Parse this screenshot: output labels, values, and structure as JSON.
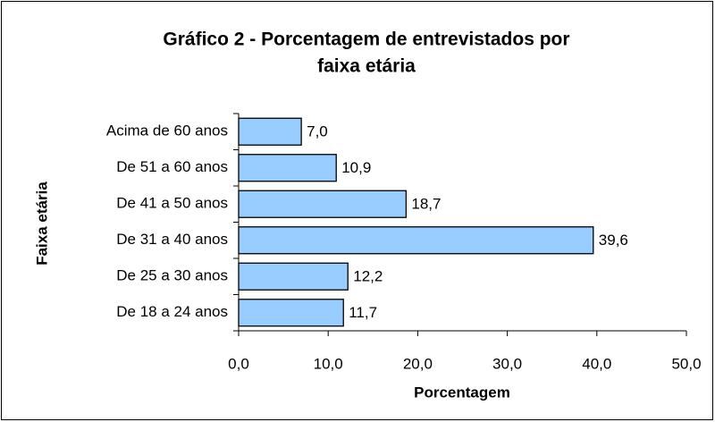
{
  "chart_data": {
    "type": "bar",
    "orientation": "horizontal",
    "title": [
      "Gráfico 2 - Porcentagem de entrevistados  por",
      "faixa etária"
    ],
    "categories": [
      "Acima de 60 anos",
      "De 51 a 60 anos",
      "De 41 a 50 anos",
      "De 31 a 40 anos",
      "De 25 a 30 anos",
      "De 18 a 24 anos"
    ],
    "values": [
      7.0,
      10.9,
      18.7,
      39.6,
      12.2,
      11.7
    ],
    "value_labels": [
      "7,0",
      "10,9",
      "18,7",
      "39,6",
      "12,2",
      "11,7"
    ],
    "color": "#99ccff",
    "xlim": [
      0,
      50
    ],
    "xticks": [
      {
        "value": 0,
        "label": "0,0"
      },
      {
        "value": 10,
        "label": "10,0"
      },
      {
        "value": 20,
        "label": "20,0"
      },
      {
        "value": 30,
        "label": "30,0"
      },
      {
        "value": 40,
        "label": "40,0"
      },
      {
        "value": 50,
        "label": "50,0"
      }
    ],
    "xlabel": "Porcentagem",
    "ylabel": "Faixa etária",
    "grid": false
  }
}
